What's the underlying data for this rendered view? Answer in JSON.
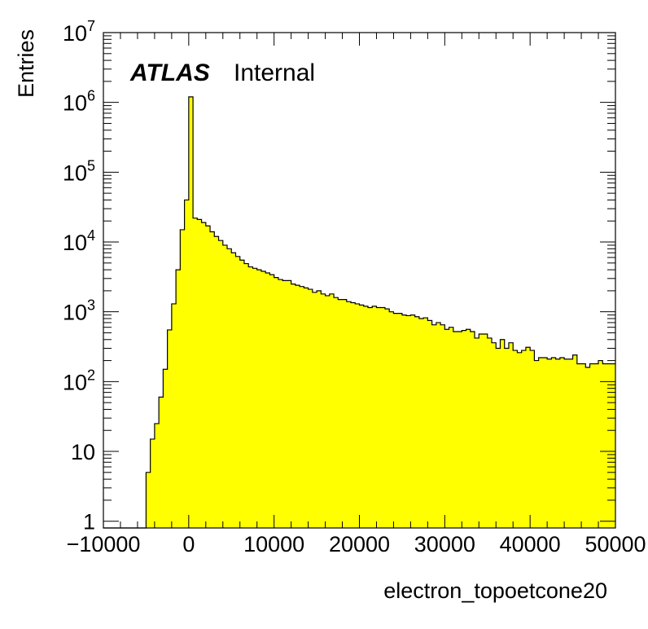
{
  "chart_data": {
    "type": "histogram",
    "title": "",
    "xlabel": "electron_topoetcone20",
    "ylabel": "Entries",
    "x_range": [
      -10000,
      50000
    ],
    "y_range": [
      0.8,
      10000000
    ],
    "y_scale": "log",
    "bin_width": 500,
    "x_ticks": [
      {
        "value": -10000,
        "label": "−10000"
      },
      {
        "value": 0,
        "label": "0"
      },
      {
        "value": 10000,
        "label": "10000"
      },
      {
        "value": 20000,
        "label": "20000"
      },
      {
        "value": 30000,
        "label": "30000"
      },
      {
        "value": 40000,
        "label": "40000"
      },
      {
        "value": 50000,
        "label": "50000"
      }
    ],
    "y_ticks": [
      {
        "value": 1,
        "base": "1",
        "exp": ""
      },
      {
        "value": 10,
        "base": "10",
        "exp": ""
      },
      {
        "value": 100,
        "base": "10",
        "exp": "2"
      },
      {
        "value": 1000,
        "base": "10",
        "exp": "3"
      },
      {
        "value": 10000,
        "base": "10",
        "exp": "4"
      },
      {
        "value": 100000,
        "base": "10",
        "exp": "5"
      },
      {
        "value": 1000000,
        "base": "10",
        "exp": "6"
      },
      {
        "value": 10000000,
        "base": "10",
        "exp": "7"
      }
    ],
    "bins": [
      {
        "x0": -5000,
        "v": 5
      },
      {
        "x0": -4500,
        "v": 15
      },
      {
        "x0": -4000,
        "v": 25
      },
      {
        "x0": -3500,
        "v": 60
      },
      {
        "x0": -3000,
        "v": 150
      },
      {
        "x0": -2500,
        "v": 550
      },
      {
        "x0": -2000,
        "v": 1300
      },
      {
        "x0": -1500,
        "v": 4000
      },
      {
        "x0": -1000,
        "v": 15000
      },
      {
        "x0": -500,
        "v": 40000
      },
      {
        "x0": 0,
        "v": 1200000
      },
      {
        "x0": 500,
        "v": 22000
      },
      {
        "x0": 1000,
        "v": 21000
      },
      {
        "x0": 1500,
        "v": 19000
      },
      {
        "x0": 2000,
        "v": 17000
      },
      {
        "x0": 2500,
        "v": 14000
      },
      {
        "x0": 3000,
        "v": 12000
      },
      {
        "x0": 3500,
        "v": 10500
      },
      {
        "x0": 4000,
        "v": 9000
      },
      {
        "x0": 4500,
        "v": 8000
      },
      {
        "x0": 5000,
        "v": 7000
      },
      {
        "x0": 5500,
        "v": 6200
      },
      {
        "x0": 6000,
        "v": 5500
      },
      {
        "x0": 6500,
        "v": 4900
      },
      {
        "x0": 7000,
        "v": 4400
      },
      {
        "x0": 7500,
        "v": 4200
      },
      {
        "x0": 8000,
        "v": 4000
      },
      {
        "x0": 8500,
        "v": 3800
      },
      {
        "x0": 9000,
        "v": 3600
      },
      {
        "x0": 9500,
        "v": 3400
      },
      {
        "x0": 10000,
        "v": 3100
      },
      {
        "x0": 10500,
        "v": 2900
      },
      {
        "x0": 11000,
        "v": 2800
      },
      {
        "x0": 11500,
        "v": 2800
      },
      {
        "x0": 12000,
        "v": 2500
      },
      {
        "x0": 12500,
        "v": 2400
      },
      {
        "x0": 13000,
        "v": 2300
      },
      {
        "x0": 13500,
        "v": 2200
      },
      {
        "x0": 14000,
        "v": 2100
      },
      {
        "x0": 14500,
        "v": 1900
      },
      {
        "x0": 15000,
        "v": 2000
      },
      {
        "x0": 15500,
        "v": 1800
      },
      {
        "x0": 16000,
        "v": 1700
      },
      {
        "x0": 16500,
        "v": 1800
      },
      {
        "x0": 17000,
        "v": 1600
      },
      {
        "x0": 17500,
        "v": 1500
      },
      {
        "x0": 18000,
        "v": 1500
      },
      {
        "x0": 18500,
        "v": 1400
      },
      {
        "x0": 19000,
        "v": 1350
      },
      {
        "x0": 19500,
        "v": 1300
      },
      {
        "x0": 20000,
        "v": 1250
      },
      {
        "x0": 20500,
        "v": 1200
      },
      {
        "x0": 21000,
        "v": 1150
      },
      {
        "x0": 21500,
        "v": 1200
      },
      {
        "x0": 22000,
        "v": 1150
      },
      {
        "x0": 22500,
        "v": 1150
      },
      {
        "x0": 23000,
        "v": 1100
      },
      {
        "x0": 23500,
        "v": 1000
      },
      {
        "x0": 24000,
        "v": 950
      },
      {
        "x0": 24500,
        "v": 950
      },
      {
        "x0": 25000,
        "v": 900
      },
      {
        "x0": 25500,
        "v": 880
      },
      {
        "x0": 26000,
        "v": 900
      },
      {
        "x0": 26500,
        "v": 850
      },
      {
        "x0": 27000,
        "v": 800
      },
      {
        "x0": 27500,
        "v": 820
      },
      {
        "x0": 28000,
        "v": 750
      },
      {
        "x0": 28500,
        "v": 650
      },
      {
        "x0": 29000,
        "v": 700
      },
      {
        "x0": 29500,
        "v": 650
      },
      {
        "x0": 30000,
        "v": 560
      },
      {
        "x0": 30500,
        "v": 600
      },
      {
        "x0": 31000,
        "v": 520
      },
      {
        "x0": 31500,
        "v": 520
      },
      {
        "x0": 32000,
        "v": 540
      },
      {
        "x0": 32500,
        "v": 560
      },
      {
        "x0": 33000,
        "v": 520
      },
      {
        "x0": 33500,
        "v": 420
      },
      {
        "x0": 34000,
        "v": 480
      },
      {
        "x0": 34500,
        "v": 480
      },
      {
        "x0": 35000,
        "v": 420
      },
      {
        "x0": 35500,
        "v": 360
      },
      {
        "x0": 36000,
        "v": 300
      },
      {
        "x0": 36500,
        "v": 400
      },
      {
        "x0": 37000,
        "v": 300
      },
      {
        "x0": 37500,
        "v": 360
      },
      {
        "x0": 38000,
        "v": 280
      },
      {
        "x0": 38500,
        "v": 260
      },
      {
        "x0": 39000,
        "v": 280
      },
      {
        "x0": 39500,
        "v": 310
      },
      {
        "x0": 40000,
        "v": 280
      },
      {
        "x0": 40500,
        "v": 200
      },
      {
        "x0": 41000,
        "v": 220
      },
      {
        "x0": 41500,
        "v": 220
      },
      {
        "x0": 42000,
        "v": 210
      },
      {
        "x0": 42500,
        "v": 220
      },
      {
        "x0": 43000,
        "v": 210
      },
      {
        "x0": 43500,
        "v": 220
      },
      {
        "x0": 44000,
        "v": 210
      },
      {
        "x0": 44500,
        "v": 210
      },
      {
        "x0": 45000,
        "v": 240
      },
      {
        "x0": 45500,
        "v": 180
      },
      {
        "x0": 46000,
        "v": 180
      },
      {
        "x0": 46500,
        "v": 160
      },
      {
        "x0": 47000,
        "v": 180
      },
      {
        "x0": 47500,
        "v": 180
      },
      {
        "x0": 48000,
        "v": 200
      },
      {
        "x0": 48500,
        "v": 180
      },
      {
        "x0": 49000,
        "v": 180
      },
      {
        "x0": 49500,
        "v": 180
      }
    ],
    "fill_color": "#ffff00",
    "line_color": "#000000",
    "grid": false,
    "legend": "none"
  },
  "annotation": {
    "experiment": "ATLAS",
    "status": "Internal"
  }
}
